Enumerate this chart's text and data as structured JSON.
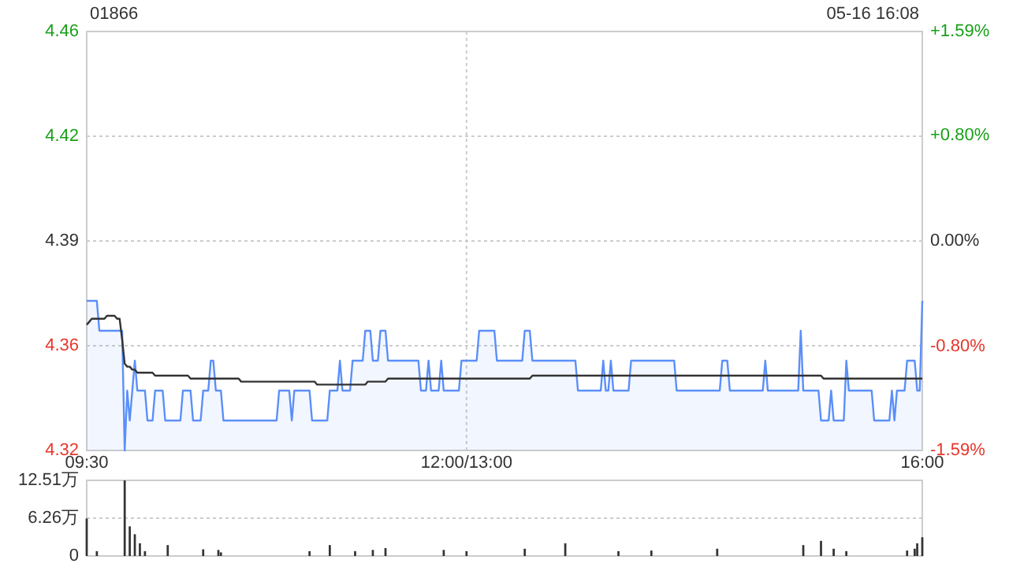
{
  "chart_data": [
    {
      "type": "line",
      "annotations": [
        "01866",
        "05-16 16:08"
      ],
      "categories": [
        "09:30",
        null,
        null,
        null,
        null,
        null,
        null,
        null,
        null,
        null,
        null,
        null,
        null,
        null,
        null,
        null,
        null,
        null,
        null,
        null,
        null,
        null,
        null,
        null,
        null,
        null,
        null,
        null,
        null,
        null,
        null,
        null,
        null,
        null,
        null,
        null,
        null,
        null,
        null,
        null,
        null,
        null,
        null,
        null,
        null,
        null,
        null,
        null,
        null,
        null,
        null,
        null,
        null,
        null,
        null,
        null,
        null,
        null,
        null,
        null,
        null,
        null,
        null,
        null,
        null,
        null,
        null,
        null,
        null,
        null,
        null,
        null,
        null,
        null,
        null,
        null,
        null,
        null,
        null,
        null,
        null,
        null,
        null,
        null,
        null,
        null,
        null,
        null,
        null,
        null,
        null,
        null,
        null,
        null,
        null,
        null,
        null,
        null,
        null,
        null,
        null,
        null,
        null,
        null,
        null,
        null,
        null,
        null,
        null,
        null,
        null,
        null,
        null,
        null,
        null,
        null,
        null,
        null,
        null,
        null,
        null,
        null,
        null,
        null,
        null,
        null,
        null,
        null,
        null,
        null,
        null,
        null,
        null,
        null,
        null,
        null,
        null,
        null,
        null,
        null,
        null,
        null,
        null,
        null,
        null,
        null,
        null,
        null,
        null,
        null,
        "12:00/13:00",
        null,
        null,
        null,
        null,
        null,
        null,
        null,
        null,
        null,
        null,
        null,
        null,
        null,
        null,
        null,
        null,
        null,
        null,
        null,
        null,
        null,
        null,
        null,
        null,
        null,
        null,
        null,
        null,
        null,
        null,
        null,
        null,
        null,
        null,
        null,
        null,
        null,
        null,
        null,
        null,
        null,
        null,
        null,
        null,
        null,
        null,
        null,
        null,
        null,
        null,
        null,
        null,
        null,
        null,
        null,
        null,
        null,
        null,
        null,
        null,
        null,
        null,
        null,
        null,
        null,
        null,
        null,
        null,
        null,
        null,
        null,
        null,
        null,
        null,
        null,
        null,
        null,
        null,
        null,
        null,
        null,
        null,
        null,
        null,
        null,
        null,
        null,
        null,
        null,
        null,
        null,
        null,
        null,
        null,
        null,
        null,
        null,
        null,
        null,
        null,
        null,
        null,
        null,
        null,
        null,
        null,
        null,
        null,
        null,
        null,
        null,
        null,
        null,
        null,
        null,
        null,
        null,
        null,
        null,
        null,
        null,
        null,
        null,
        null,
        null,
        null,
        null,
        null,
        null,
        null,
        null,
        null,
        null,
        null,
        null,
        null,
        null,
        null,
        null,
        null,
        null,
        null,
        null,
        null,
        null,
        null,
        null,
        null,
        null,
        null,
        null,
        null,
        null,
        null,
        null,
        null,
        null,
        null,
        null,
        null,
        null,
        null,
        null,
        null,
        null,
        null,
        null,
        null,
        null,
        null,
        null,
        null,
        null,
        null,
        null,
        null,
        null,
        null,
        null,
        "16:00"
      ],
      "ylim": [
        4.32,
        4.46
      ],
      "yticks": [
        4.32,
        {
          "value": 4.355,
          "label": "4.36"
        },
        4.39,
        {
          "value": 4.425,
          "label": "4.42"
        },
        4.46
      ],
      "y2lim": [
        -1.59,
        1.59
      ],
      "y2ticks": [
        {
          "value": -1.59,
          "label": "-1.59%"
        },
        {
          "value": -0.8,
          "label": "-0.80%"
        },
        {
          "value": 0,
          "label": "0.00%"
        },
        {
          "value": 0.8,
          "label": "+0.80%"
        },
        {
          "value": 1.59,
          "label": "+1.59%"
        }
      ],
      "grid": true,
      "series": [
        {
          "type": "area",
          "color": "#5b8ff9",
          "values": [
            4.37,
            4.37,
            4.37,
            4.37,
            4.37,
            4.36,
            4.36,
            4.36,
            4.36,
            4.36,
            4.36,
            4.36,
            4.36,
            4.36,
            4.36,
            4.32,
            4.34,
            4.33,
            4.34,
            4.35,
            4.34,
            4.34,
            4.34,
            4.34,
            4.33,
            4.33,
            4.33,
            4.34,
            4.34,
            4.34,
            4.34,
            4.33,
            4.33,
            4.33,
            4.33,
            4.33,
            4.33,
            4.33,
            4.34,
            4.34,
            4.34,
            4.34,
            4.33,
            4.33,
            4.33,
            4.33,
            4.34,
            4.34,
            4.34,
            4.35,
            4.35,
            4.34,
            4.34,
            4.34,
            4.33,
            4.33,
            4.33,
            4.33,
            4.33,
            4.33,
            4.33,
            4.33,
            4.33,
            4.33,
            4.33,
            4.33,
            4.33,
            4.33,
            4.33,
            4.33,
            4.33,
            4.33,
            4.33,
            4.33,
            4.33,
            4.33,
            4.34,
            4.34,
            4.34,
            4.34,
            4.34,
            4.33,
            4.34,
            4.34,
            4.34,
            4.34,
            4.34,
            4.34,
            4.34,
            4.33,
            4.33,
            4.33,
            4.33,
            4.33,
            4.33,
            4.33,
            4.34,
            4.34,
            4.34,
            4.34,
            4.35,
            4.34,
            4.34,
            4.34,
            4.34,
            4.35,
            4.35,
            4.35,
            4.35,
            4.35,
            4.36,
            4.36,
            4.36,
            4.35,
            4.35,
            4.35,
            4.36,
            4.36,
            4.36,
            4.35,
            4.35,
            4.35,
            4.35,
            4.35,
            4.35,
            4.35,
            4.35,
            4.35,
            4.35,
            4.35,
            4.35,
            4.35,
            4.34,
            4.34,
            4.34,
            4.35,
            4.34,
            4.34,
            4.34,
            4.34,
            4.35,
            4.34,
            4.34,
            4.34,
            4.34,
            4.34,
            4.34,
            4.34,
            4.35,
            4.35,
            4.35,
            4.35,
            4.35,
            4.35,
            4.35,
            4.36,
            4.36,
            4.36,
            4.36,
            4.36,
            4.36,
            4.36,
            4.35,
            4.35,
            4.35,
            4.35,
            4.35,
            4.35,
            4.35,
            4.35,
            4.35,
            4.35,
            4.35,
            4.36,
            4.36,
            4.36,
            4.35,
            4.35,
            4.35,
            4.35,
            4.35,
            4.35,
            4.35,
            4.35,
            4.35,
            4.35,
            4.35,
            4.35,
            4.35,
            4.35,
            4.35,
            4.35,
            4.35,
            4.35,
            4.34,
            4.34,
            4.34,
            4.34,
            4.34,
            4.34,
            4.34,
            4.34,
            4.34,
            4.34,
            4.35,
            4.34,
            4.34,
            4.35,
            4.34,
            4.34,
            4.34,
            4.34,
            4.34,
            4.34,
            4.34,
            4.35,
            4.35,
            4.35,
            4.35,
            4.35,
            4.35,
            4.35,
            4.35,
            4.35,
            4.35,
            4.35,
            4.35,
            4.35,
            4.35,
            4.35,
            4.35,
            4.35,
            4.35,
            4.34,
            4.34,
            4.34,
            4.34,
            4.34,
            4.34,
            4.34,
            4.34,
            4.34,
            4.34,
            4.34,
            4.34,
            4.34,
            4.34,
            4.34,
            4.34,
            4.34,
            4.34,
            4.35,
            4.35,
            4.35,
            4.34,
            4.34,
            4.34,
            4.34,
            4.34,
            4.34,
            4.34,
            4.34,
            4.34,
            4.34,
            4.34,
            4.34,
            4.34,
            4.34,
            4.35,
            4.34,
            4.34,
            4.34,
            4.34,
            4.34,
            4.34,
            4.34,
            4.34,
            4.34,
            4.34,
            4.34,
            4.34,
            4.34,
            4.36,
            4.34,
            4.34,
            4.34,
            4.34,
            4.34,
            4.34,
            4.34,
            4.33,
            4.33,
            4.33,
            4.33,
            4.34,
            4.33,
            4.33,
            4.33,
            4.33,
            4.33,
            4.35,
            4.34,
            4.34,
            4.34,
            4.34,
            4.34,
            4.34,
            4.34,
            4.34,
            4.34,
            4.34,
            4.33,
            4.33,
            4.33,
            4.33,
            4.33,
            4.33,
            4.33,
            4.34,
            4.33,
            4.34,
            4.34,
            4.34,
            4.34,
            4.35,
            4.35,
            4.35,
            4.35,
            4.34,
            4.34,
            4.37
          ]
        },
        {
          "color": "#333333",
          "values": [
            4.362,
            4.363,
            4.364,
            4.364,
            4.364,
            4.364,
            4.364,
            4.364,
            4.365,
            4.365,
            4.365,
            4.365,
            4.364,
            4.364,
            4.357,
            4.349,
            4.348,
            4.348,
            4.347,
            4.347,
            4.346,
            4.346,
            4.346,
            4.346,
            4.346,
            4.346,
            4.346,
            4.345,
            4.345,
            4.345,
            4.345,
            4.345,
            4.345,
            4.345,
            4.345,
            4.345,
            4.345,
            4.345,
            4.345,
            4.345,
            4.345,
            4.344,
            4.344,
            4.344,
            4.344,
            4.344,
            4.344,
            4.344,
            4.344,
            4.344,
            4.344,
            4.344,
            4.344,
            4.344,
            4.344,
            4.344,
            4.344,
            4.344,
            4.344,
            4.344,
            4.344,
            4.343,
            4.343,
            4.343,
            4.343,
            4.343,
            4.343,
            4.343,
            4.343,
            4.343,
            4.343,
            4.343,
            4.343,
            4.343,
            4.343,
            4.343,
            4.343,
            4.343,
            4.343,
            4.343,
            4.343,
            4.343,
            4.343,
            4.343,
            4.343,
            4.343,
            4.343,
            4.343,
            4.343,
            4.343,
            4.343,
            4.342,
            4.342,
            4.342,
            4.342,
            4.342,
            4.342,
            4.342,
            4.342,
            4.342,
            4.342,
            4.342,
            4.342,
            4.342,
            4.342,
            4.342,
            4.342,
            4.342,
            4.342,
            4.342,
            4.342,
            4.343,
            4.343,
            4.343,
            4.343,
            4.343,
            4.343,
            4.343,
            4.343,
            4.344,
            4.344,
            4.344,
            4.344,
            4.344,
            4.344,
            4.344,
            4.344,
            4.344,
            4.344,
            4.344,
            4.344,
            4.344,
            4.344,
            4.344,
            4.344,
            4.344,
            4.344,
            4.344,
            4.344,
            4.344,
            4.344,
            4.344,
            4.344,
            4.344,
            4.344,
            4.344,
            4.344,
            4.344,
            4.344,
            4.344,
            4.344,
            4.344,
            4.344,
            4.344,
            4.344,
            4.344,
            4.344,
            4.344,
            4.344,
            4.344,
            4.344,
            4.344,
            4.344,
            4.344,
            4.344,
            4.344,
            4.344,
            4.344,
            4.344,
            4.344,
            4.344,
            4.344,
            4.344,
            4.344,
            4.344,
            4.344,
            4.345,
            4.345,
            4.345,
            4.345,
            4.345,
            4.345,
            4.345,
            4.345,
            4.345,
            4.345,
            4.345,
            4.345,
            4.345,
            4.345,
            4.345,
            4.345,
            4.345,
            4.345,
            4.345,
            4.345,
            4.345,
            4.345,
            4.345,
            4.345,
            4.345,
            4.345,
            4.345,
            4.345,
            4.345,
            4.345,
            4.345,
            4.345,
            4.345,
            4.345,
            4.345,
            4.345,
            4.345,
            4.345,
            4.345,
            4.345,
            4.345,
            4.345,
            4.345,
            4.345,
            4.345,
            4.345,
            4.345,
            4.345,
            4.345,
            4.345,
            4.345,
            4.345,
            4.345,
            4.345,
            4.345,
            4.345,
            4.345,
            4.345,
            4.345,
            4.345,
            4.345,
            4.345,
            4.345,
            4.345,
            4.345,
            4.345,
            4.345,
            4.345,
            4.345,
            4.345,
            4.345,
            4.345,
            4.345,
            4.345,
            4.345,
            4.345,
            4.345,
            4.345,
            4.345,
            4.345,
            4.345,
            4.345,
            4.345,
            4.345,
            4.345,
            4.345,
            4.345,
            4.345,
            4.345,
            4.345,
            4.345,
            4.345,
            4.345,
            4.345,
            4.345,
            4.345,
            4.345,
            4.345,
            4.345,
            4.345,
            4.345,
            4.345,
            4.345,
            4.345,
            4.345,
            4.345,
            4.345,
            4.345,
            4.345,
            4.345,
            4.345,
            4.345,
            4.345,
            4.345,
            4.345,
            4.344,
            4.344,
            4.344,
            4.344,
            4.344,
            4.344,
            4.344,
            4.344,
            4.344,
            4.344,
            4.344,
            4.344,
            4.344,
            4.344,
            4.344,
            4.344,
            4.344,
            4.344,
            4.344,
            4.344,
            4.344,
            4.344,
            4.344,
            4.344,
            4.344,
            4.344,
            4.344,
            4.344,
            4.344,
            4.344,
            4.344,
            4.344,
            4.344,
            4.344,
            4.344,
            4.344,
            4.344,
            4.344,
            4.344,
            4.344
          ]
        }
      ]
    },
    {
      "type": "bar",
      "color": "#333333",
      "ylim": [
        0,
        12.51
      ],
      "yticks": [
        0,
        {
          "value": 6.26,
          "label": "6.26万"
        },
        {
          "value": 12.51,
          "label": "12.51万"
        }
      ],
      "tick_labels": "y",
      "grid": "y",
      "categories": [
        null,
        null,
        null,
        null,
        null,
        null,
        null,
        null,
        null,
        null,
        null,
        null,
        null,
        null,
        null,
        null,
        null,
        null,
        null,
        null,
        null,
        null,
        null,
        null,
        null,
        null,
        null,
        null,
        null,
        null,
        null,
        null,
        null,
        null,
        null,
        null,
        null,
        null,
        null,
        null,
        null,
        null,
        null,
        null,
        null,
        null,
        null,
        null,
        null,
        null,
        null,
        null,
        null,
        null,
        null,
        null,
        null,
        null,
        null,
        null,
        null,
        null,
        null,
        null,
        null,
        null,
        null,
        null,
        null,
        null,
        null,
        null,
        null,
        null,
        null,
        null,
        null,
        null,
        null,
        null,
        null,
        null,
        null,
        null,
        null,
        null,
        null,
        null,
        null,
        null,
        null,
        null,
        null,
        null,
        null,
        null,
        null,
        null,
        null,
        null,
        null,
        null,
        null,
        null,
        null,
        null,
        null,
        null,
        null,
        null,
        null,
        null,
        null,
        null,
        null,
        null,
        null,
        null,
        null,
        null,
        null,
        null,
        null,
        null,
        null,
        null,
        null,
        null,
        null,
        null,
        null,
        null,
        null,
        null,
        null,
        null,
        null,
        null,
        null,
        null,
        null,
        null,
        null,
        null,
        null,
        null,
        null,
        null,
        null,
        null,
        null,
        null,
        null,
        null,
        null,
        null,
        null,
        null,
        null,
        null,
        null,
        null,
        null,
        null,
        null,
        null,
        null,
        null,
        null,
        null,
        null,
        null,
        null,
        null,
        null,
        null,
        null,
        null,
        null,
        null,
        null,
        null,
        null,
        null,
        null,
        null,
        null,
        null,
        null,
        null,
        null,
        null,
        null,
        null,
        null,
        null,
        null,
        null,
        null,
        null,
        null,
        null,
        null,
        null,
        null,
        null,
        null,
        null,
        null,
        null,
        null,
        null,
        null,
        null,
        null,
        null,
        null,
        null,
        null,
        null,
        null,
        null,
        null,
        null,
        null,
        null,
        null,
        null,
        null,
        null,
        null,
        null,
        null,
        null,
        null,
        null,
        null,
        null,
        null,
        null,
        null,
        null,
        null,
        null,
        null,
        null,
        null,
        null,
        null,
        null,
        null,
        null,
        null,
        null,
        null,
        null,
        null,
        null,
        null,
        null,
        null,
        null,
        null,
        null,
        null,
        null,
        null,
        null,
        null,
        null,
        null,
        null,
        null,
        null,
        null,
        null,
        null,
        null,
        null,
        null,
        null,
        null,
        null,
        null,
        null,
        null,
        null,
        null,
        null,
        null,
        null,
        null,
        null,
        null,
        null,
        null,
        null,
        null,
        null,
        null,
        null,
        null,
        null,
        null,
        null,
        null,
        null,
        null,
        null,
        null,
        null,
        null,
        null,
        null,
        null,
        null,
        null,
        null,
        null,
        null,
        null,
        null,
        null,
        null,
        null,
        null,
        null,
        null,
        null,
        null,
        null
      ],
      "values": [
        6.2,
        0,
        0,
        0,
        0.8,
        0,
        0,
        0,
        0,
        0,
        0,
        0,
        0,
        0,
        0,
        12.5,
        0,
        4.9,
        0,
        3.6,
        0,
        2.1,
        0,
        0.8,
        0,
        0,
        0,
        0,
        0,
        0,
        0,
        0,
        1.8,
        0,
        0,
        0,
        0,
        0,
        0,
        0,
        0,
        0,
        0,
        0,
        0,
        0,
        1.1,
        0,
        0,
        0,
        0,
        0,
        1.0,
        0.6,
        0,
        0,
        0,
        0,
        0,
        0,
        0,
        0,
        0,
        0,
        0,
        0,
        0,
        0,
        0,
        0,
        0,
        0,
        0,
        0,
        0,
        0,
        0,
        0,
        0,
        0,
        0,
        0,
        0,
        0,
        0,
        0,
        0,
        0,
        0.8,
        0,
        0,
        0,
        0,
        0,
        0,
        0,
        1.8,
        0,
        0,
        0,
        0,
        0,
        0,
        0,
        0,
        0,
        0.8,
        0,
        0,
        0,
        0,
        0,
        0,
        1.0,
        0,
        0,
        0,
        0,
        1.3,
        0,
        0,
        0,
        0,
        0,
        0,
        0,
        0,
        0,
        0,
        0,
        0,
        0,
        0,
        0,
        0,
        0,
        0,
        0,
        0,
        0,
        0,
        1.0,
        0,
        0,
        0,
        0,
        0,
        0,
        0,
        0,
        0.8,
        0,
        0,
        0,
        0,
        0,
        0,
        0,
        0,
        0,
        0,
        0,
        0,
        0,
        0,
        0,
        0,
        0,
        0,
        0,
        0,
        0,
        0,
        1.2,
        0,
        0,
        0,
        0,
        0,
        0,
        0,
        0,
        0,
        0,
        0,
        0,
        0,
        0,
        0,
        2.1,
        0,
        0,
        0,
        0,
        0,
        0,
        0,
        0,
        0,
        0,
        0,
        0,
        0,
        0,
        0,
        0,
        0,
        0,
        0,
        0,
        0.8,
        0,
        0,
        0,
        0,
        0,
        0,
        0,
        0,
        0,
        0,
        0,
        0,
        0.9,
        0,
        0,
        0,
        0,
        0,
        0,
        0,
        0,
        0,
        0,
        0,
        0,
        0,
        0,
        0,
        0,
        0,
        0,
        0,
        0,
        0,
        0,
        0,
        0,
        0,
        1.2,
        0,
        0,
        0,
        0,
        0,
        0,
        0,
        0,
        0,
        0,
        0,
        0,
        0,
        0,
        0,
        0,
        0,
        0,
        0,
        0,
        0,
        0,
        0,
        0,
        0,
        0,
        0,
        0,
        0,
        0,
        0,
        0,
        0,
        1.8,
        0,
        0,
        0,
        0,
        0,
        0,
        2.5,
        0,
        0,
        0,
        0,
        1.2,
        0,
        0,
        0,
        0,
        0.8,
        0,
        0,
        0,
        0,
        0,
        0,
        0,
        0,
        0,
        0,
        0,
        0,
        0,
        0,
        0,
        0,
        0,
        0,
        0,
        0,
        0,
        0,
        0,
        0.9,
        0,
        0,
        1.2,
        2.1,
        0,
        3.1
      ]
    }
  ]
}
